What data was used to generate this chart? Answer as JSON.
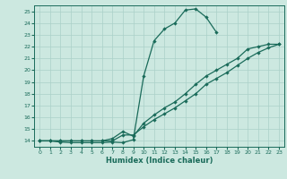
{
  "xlabel": "Humidex (Indice chaleur)",
  "bg_color": "#cce8e0",
  "line_color": "#1a6b5a",
  "grid_color": "#aad0c8",
  "xlim": [
    -0.5,
    23.5
  ],
  "ylim": [
    13.5,
    25.5
  ],
  "xticks": [
    0,
    1,
    2,
    3,
    4,
    5,
    6,
    7,
    8,
    9,
    10,
    11,
    12,
    13,
    14,
    15,
    16,
    17,
    18,
    19,
    20,
    21,
    22,
    23
  ],
  "yticks": [
    14,
    15,
    16,
    17,
    18,
    19,
    20,
    21,
    22,
    23,
    24,
    25
  ],
  "line1_x": [
    0,
    1,
    2,
    3,
    4,
    5,
    6,
    7,
    8,
    9,
    10,
    11,
    12,
    13,
    14,
    15,
    16,
    17
  ],
  "line1_y": [
    14.0,
    14.0,
    13.9,
    13.85,
    13.85,
    13.85,
    13.85,
    13.9,
    13.85,
    14.1,
    19.5,
    22.5,
    23.5,
    24.0,
    25.1,
    25.2,
    24.5,
    23.2
  ],
  "line2_x": [
    0,
    1,
    2,
    3,
    4,
    5,
    6,
    7,
    8,
    9,
    10,
    11,
    12,
    13,
    14,
    15,
    16,
    17,
    18,
    19,
    20,
    21,
    22,
    23
  ],
  "line2_y": [
    14.0,
    14.0,
    14.0,
    14.0,
    14.0,
    14.0,
    14.0,
    14.2,
    14.8,
    14.4,
    15.5,
    16.2,
    16.8,
    17.3,
    18.0,
    18.8,
    19.5,
    20.0,
    20.5,
    21.0,
    21.8,
    22.0,
    22.2,
    22.2
  ],
  "line3_x": [
    0,
    1,
    2,
    3,
    4,
    5,
    6,
    7,
    8,
    9,
    10,
    11,
    12,
    13,
    14,
    15,
    16,
    17,
    18,
    19,
    20,
    21,
    22,
    23
  ],
  "line3_y": [
    14.0,
    14.0,
    14.0,
    14.0,
    14.0,
    14.0,
    14.0,
    14.0,
    14.5,
    14.5,
    15.2,
    15.8,
    16.3,
    16.8,
    17.4,
    18.0,
    18.8,
    19.3,
    19.8,
    20.4,
    21.0,
    21.5,
    21.9,
    22.2
  ]
}
